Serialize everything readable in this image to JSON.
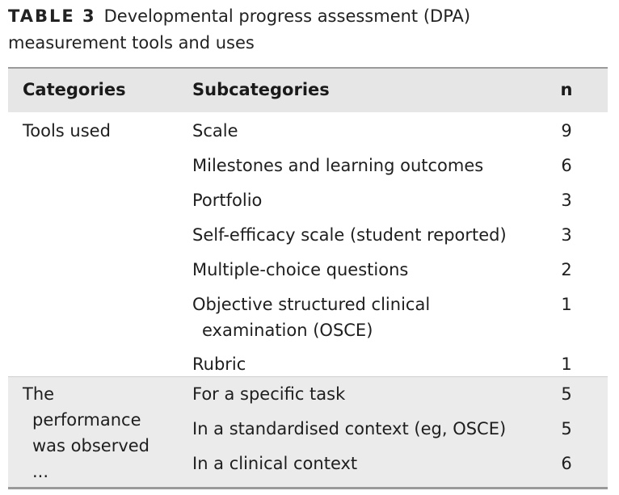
{
  "caption": {
    "label": "TABLE 3",
    "title_line1": "Developmental progress assessment (DPA)",
    "title_line2": "measurement tools and uses"
  },
  "table": {
    "headers": {
      "categories": "Categories",
      "subcategories": "Subcategories",
      "n": "n"
    },
    "groups": [
      {
        "category_lines": [
          "Tools used"
        ],
        "rows": [
          {
            "sub_lines": [
              "Scale"
            ],
            "n": "9"
          },
          {
            "sub_lines": [
              "Milestones and learning outcomes"
            ],
            "n": "6"
          },
          {
            "sub_lines": [
              "Portfolio"
            ],
            "n": "3"
          },
          {
            "sub_lines": [
              "Self-efficacy scale (student reported)"
            ],
            "n": "3"
          },
          {
            "sub_lines": [
              "Multiple-choice questions"
            ],
            "n": "2"
          },
          {
            "sub_lines": [
              "Objective structured clinical",
              "examination (OSCE)"
            ],
            "n": "1"
          },
          {
            "sub_lines": [
              "Rubric"
            ],
            "n": "1"
          }
        ]
      },
      {
        "category_lines": [
          "The",
          "performance",
          "was observed",
          "..."
        ],
        "rows": [
          {
            "sub_lines": [
              "For a specific task"
            ],
            "n": "5"
          },
          {
            "sub_lines": [
              "In a standardised context (eg, OSCE)"
            ],
            "n": "5"
          },
          {
            "sub_lines": [
              "In a clinical context"
            ],
            "n": "6"
          }
        ]
      }
    ]
  }
}
